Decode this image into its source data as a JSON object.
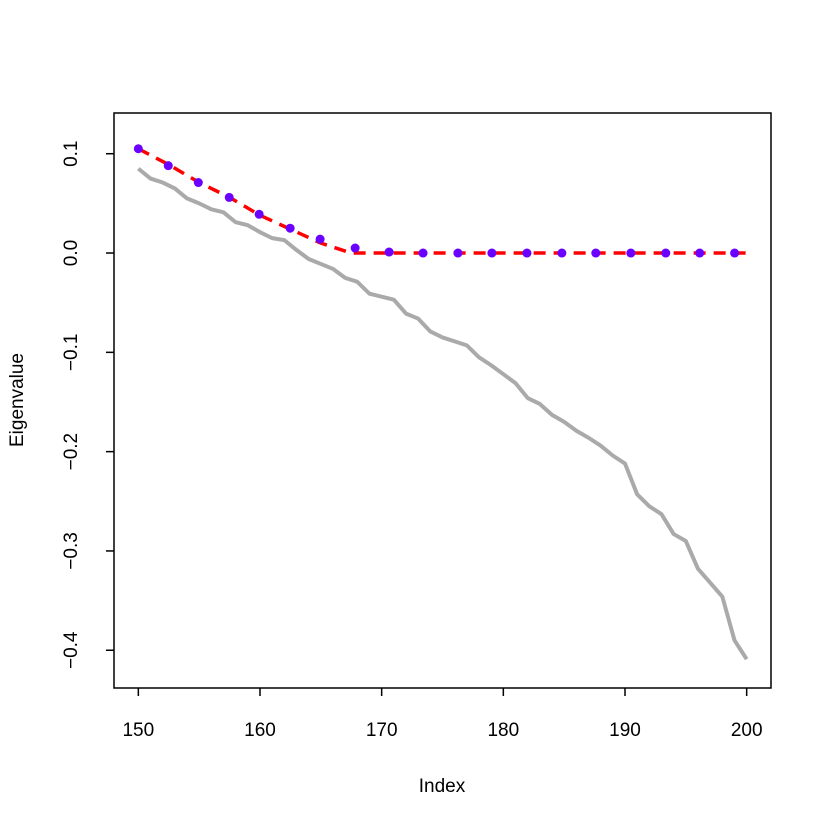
{
  "chart_data": {
    "type": "line",
    "xlabel": "Index",
    "ylabel": "Eigenvalue",
    "xlim": [
      148,
      202
    ],
    "ylim": [
      -0.438,
      0.141
    ],
    "xticks": [
      150,
      160,
      170,
      180,
      190,
      200
    ],
    "yticks": [
      {
        "value": -0.4,
        "label": "−0.4"
      },
      {
        "value": -0.3,
        "label": "−0.3"
      },
      {
        "value": -0.2,
        "label": "−0.2"
      },
      {
        "value": -0.1,
        "label": "−0.1"
      },
      {
        "value": 0,
        "label": "0.0"
      },
      0.1
    ],
    "series": [
      {
        "mode": "line",
        "dash": false,
        "color": "#aaaaaa",
        "x": [
          150,
          151,
          152,
          153,
          154,
          155,
          156,
          157,
          158,
          159,
          160,
          161,
          162,
          163,
          164,
          165,
          166,
          167,
          168,
          169,
          170,
          171,
          172,
          173,
          174,
          175,
          176,
          177,
          178,
          179,
          180,
          181,
          182,
          183,
          184,
          185,
          186,
          187,
          188,
          189,
          190,
          191,
          192,
          193,
          194,
          195,
          196,
          197,
          198,
          199,
          200
        ],
        "values": [
          0.085,
          0.075,
          0.071,
          0.065,
          0.055,
          0.05,
          0.044,
          0.041,
          0.031,
          0.028,
          0.021,
          0.015,
          0.013,
          0.003,
          -0.006,
          -0.011,
          -0.016,
          -0.025,
          -0.029,
          -0.041,
          -0.044,
          -0.047,
          -0.061,
          -0.066,
          -0.079,
          -0.085,
          -0.089,
          -0.093,
          -0.105,
          -0.113,
          -0.122,
          -0.131,
          -0.146,
          -0.152,
          -0.163,
          -0.17,
          -0.179,
          -0.186,
          -0.194,
          -0.204,
          -0.212,
          -0.243,
          -0.255,
          -0.263,
          -0.283,
          -0.29,
          -0.318,
          -0.332,
          -0.346,
          -0.39,
          -0.409
        ]
      },
      {
        "mode": "line",
        "dash": true,
        "color": "#ff0000",
        "x": [
          150,
          152.5,
          155,
          157.5,
          160,
          162.5,
          165,
          167.5,
          200
        ],
        "values": [
          0.105,
          0.089,
          0.071,
          0.056,
          0.038,
          0.024,
          0.01,
          0,
          0
        ]
      },
      {
        "mode": "points",
        "dash": false,
        "color": "#6a00ff",
        "x": [
          150,
          152.46,
          154.93,
          157.47,
          159.93,
          162.48,
          164.94,
          167.82,
          170.61,
          173.4,
          176.27,
          179.06,
          181.94,
          184.81,
          187.6,
          190.48,
          193.35,
          196.14,
          199.01
        ],
        "values": [
          0.105,
          0.088,
          0.071,
          0.056,
          0.039,
          0.025,
          0.014,
          0.005,
          0.001,
          0,
          0,
          0,
          0,
          0,
          0,
          0,
          0,
          0,
          0
        ]
      }
    ]
  }
}
